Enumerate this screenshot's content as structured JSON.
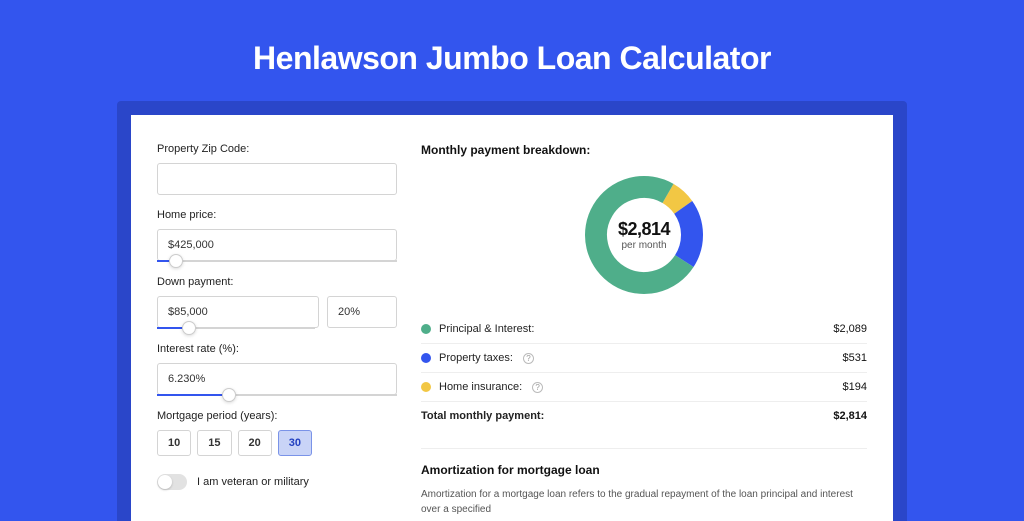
{
  "page": {
    "title": "Henlawson Jumbo Loan Calculator",
    "background_color": "#3355ee",
    "card_shadow_color": "#2a46c9",
    "card_color": "#ffffff"
  },
  "form": {
    "zip": {
      "label": "Property Zip Code:",
      "value": ""
    },
    "home_price": {
      "label": "Home price:",
      "value": "$425,000",
      "slider_fill_pct": 8
    },
    "down_payment": {
      "label": "Down payment:",
      "amount": "$85,000",
      "percent": "20%",
      "slider_fill_pct": 20
    },
    "interest_rate": {
      "label": "Interest rate (%):",
      "value": "6.230%",
      "slider_fill_pct": 30
    },
    "mortgage_period": {
      "label": "Mortgage period (years):",
      "options": [
        "10",
        "15",
        "20",
        "30"
      ],
      "selected_index": 3
    },
    "veteran": {
      "label": "I am veteran or military",
      "on": false
    }
  },
  "breakdown": {
    "title": "Monthly payment breakdown:",
    "donut": {
      "amount": "$2,814",
      "sub": "per month",
      "slices": [
        {
          "label": "Principal & Interest:",
          "value": "$2,089",
          "pct": 74.2,
          "color": "#4fae8a"
        },
        {
          "label": "Property taxes:",
          "value": "$531",
          "pct": 18.9,
          "color": "#3355ee",
          "info": true
        },
        {
          "label": "Home insurance:",
          "value": "$194",
          "pct": 6.9,
          "color": "#f2c744",
          "info": true
        }
      ],
      "stroke_width": 22
    },
    "total": {
      "label": "Total monthly payment:",
      "value": "$2,814"
    }
  },
  "amortization": {
    "title": "Amortization for mortgage loan",
    "text": "Amortization for a mortgage loan refers to the gradual repayment of the loan principal and interest over a specified"
  }
}
